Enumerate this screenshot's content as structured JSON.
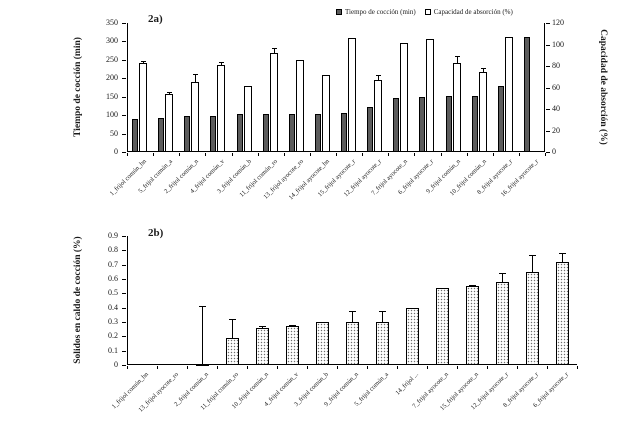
{
  "chart_data": [
    {
      "type": "bar",
      "panel_label": "2a)",
      "categories": [
        "1_frijol común_bn",
        "5_frijol común_a",
        "2_frijol común_n",
        "4_frijol común_v",
        "3_frijol común_b",
        "11_frijol común_ro",
        "13_frijol ayocote_ro",
        "14_frijol ayocote_bn",
        "15_frijol ayocote_r",
        "12_frijol ayocote_r",
        "7_frijol ayocote_n",
        "6_frijol ayocote_r",
        "9_frijol común_n",
        "10_frijol común_n",
        "8_frijol ayocote_r",
        "16_frijol ayocote_r"
      ],
      "series": [
        {
          "name": "Tiempo de cocción  (min)",
          "axis": "left",
          "style": "filled",
          "values": [
            90,
            93,
            97,
            99,
            102,
            103,
            103,
            104,
            106,
            123,
            147,
            150,
            151,
            153,
            179,
            313
          ],
          "errors": [
            0,
            0,
            0,
            0,
            0,
            0,
            0,
            0,
            0,
            0,
            0,
            0,
            0,
            0,
            0,
            0
          ]
        },
        {
          "name": "Capacidad de absorción (%)",
          "axis": "right",
          "style": "open",
          "values": [
            83,
            54,
            65,
            81,
            61,
            92,
            86,
            72,
            106,
            67,
            101,
            105,
            83,
            74,
            107,
            null
          ],
          "errors": [
            2,
            2,
            8,
            3,
            0,
            5,
            0,
            0,
            0,
            5,
            0,
            0,
            6,
            4,
            0,
            0
          ]
        }
      ],
      "left_axis": {
        "label": "Tiempo de cocción (min)",
        "min": 0,
        "max": 350,
        "ticks": [
          0,
          50,
          100,
          150,
          200,
          250,
          300,
          350
        ]
      },
      "right_axis": {
        "label": "Capacidad de absorción (%)",
        "min": 0,
        "max": 120,
        "ticks": [
          0,
          20,
          40,
          60,
          80,
          100,
          120
        ]
      },
      "legend_position": "top"
    },
    {
      "type": "bar",
      "panel_label": "2b)",
      "categories": [
        "1_frijol común_bn",
        "13_frijol ayocote_ro",
        "2_frijol común_n",
        "11_frijol común_ro",
        "10_frijol común_n",
        "4_frijol común_v",
        "3_frijol común_b",
        "9_frijol común_n",
        "5_frijol común_a",
        "14_frijol ...",
        "7_frijol ayocote_n",
        "15_frijol ayocote_n",
        "12_frijol ayocote_r",
        "8_frijol ayocote_r",
        "6_frijol ayocote_r"
      ],
      "values": [
        0,
        0,
        0.01,
        0.19,
        0.26,
        0.27,
        0.3,
        0.3,
        0.3,
        0.4,
        0.54,
        0.55,
        0.58,
        0.65,
        0.72
      ],
      "errors": [
        0,
        0,
        0.4,
        0.13,
        0.01,
        0.01,
        0,
        0.08,
        0.08,
        0,
        0,
        0.01,
        0.06,
        0.12,
        0.06
      ],
      "y_axis": {
        "label": "Solidos en caldo de cocción (%)",
        "min": 0,
        "max": 0.9,
        "ticks": [
          "0",
          "0.1",
          "0.2",
          "0.3",
          "0.4",
          "0.5",
          "0.6",
          "0.7",
          "0.8",
          "0.9"
        ]
      },
      "grid": "off"
    }
  ]
}
